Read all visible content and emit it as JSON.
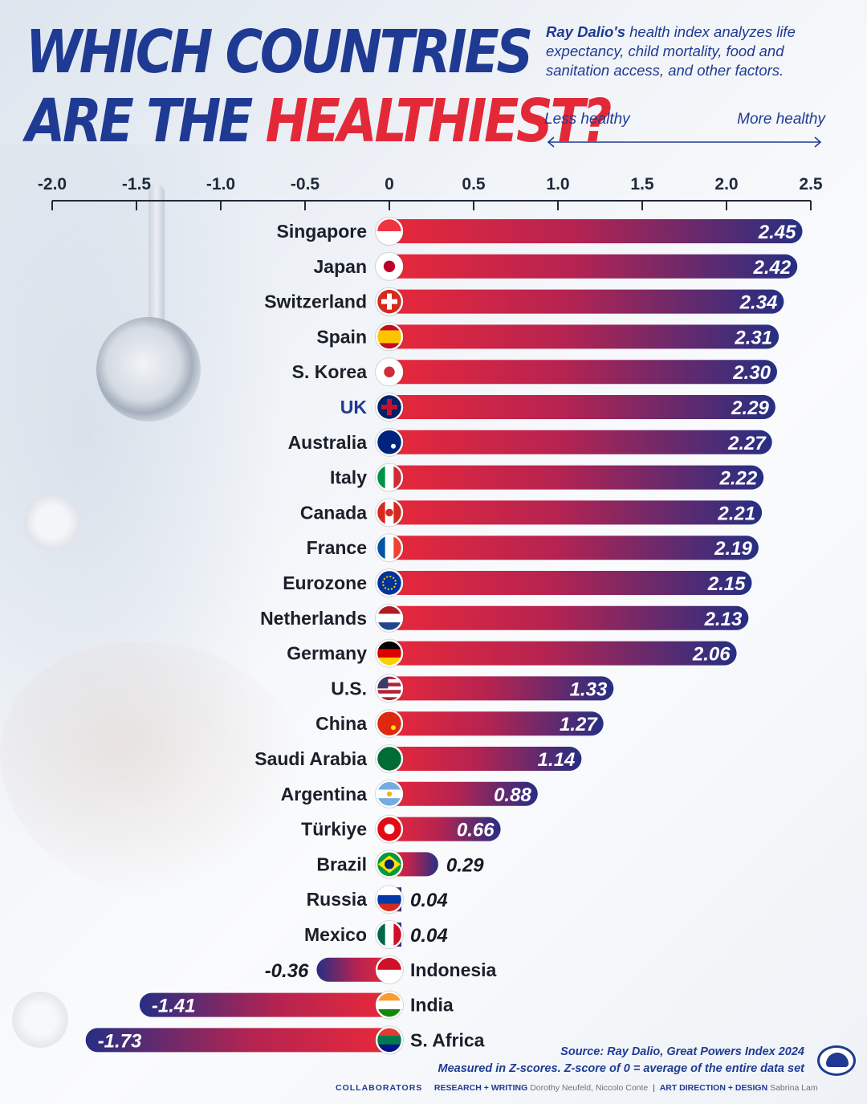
{
  "header": {
    "title_line1": "WHICH COUNTRIES",
    "title_line2_prefix": "ARE THE ",
    "title_line2_accent": "HEALTHIEST?",
    "subtitle_bold": "Ray Dalio's",
    "subtitle_rest": " health index analyzes life expectancy, child mortality, food and sanitation access, and other factors.",
    "scale_less": "Less healthy",
    "scale_more": "More healthy"
  },
  "colors": {
    "title_blue": "#1f3a93",
    "title_red": "#e32938",
    "bar_red": "#e8283a",
    "bar_navy": "#262f83",
    "axis": "#1f2a3a"
  },
  "chart_data": {
    "type": "bar",
    "orientation": "horizontal",
    "title": "WHICH COUNTRIES ARE THE HEALTHIEST?",
    "xlabel": "",
    "ylabel": "",
    "xlim": [
      -2.0,
      2.5
    ],
    "xticks": [
      -2.0,
      -1.5,
      -1.0,
      -0.5,
      0,
      0.5,
      1.0,
      1.5,
      2.0,
      2.5
    ],
    "xtick_labels": [
      "-2.0",
      "-1.5",
      "-1.0",
      "-0.5",
      "0",
      "0.5",
      "1.0",
      "1.5",
      "2.0",
      "2.5"
    ],
    "grid": false,
    "legend": "none",
    "categories": [
      "Singapore",
      "Japan",
      "Switzerland",
      "Spain",
      "S. Korea",
      "UK",
      "Australia",
      "Italy",
      "Canada",
      "France",
      "Eurozone",
      "Netherlands",
      "Germany",
      "U.S.",
      "China",
      "Saudi Arabia",
      "Argentina",
      "Türkiye",
      "Brazil",
      "Russia",
      "Mexico",
      "Indonesia",
      "India",
      "S. Africa"
    ],
    "values": [
      2.45,
      2.42,
      2.34,
      2.31,
      2.3,
      2.29,
      2.27,
      2.22,
      2.21,
      2.19,
      2.15,
      2.13,
      2.06,
      1.33,
      1.27,
      1.14,
      0.88,
      0.66,
      0.29,
      0.04,
      0.04,
      -0.36,
      -1.41,
      -1.73
    ],
    "value_labels": [
      "2.45",
      "2.42",
      "2.34",
      "2.31",
      "2.30",
      "2.29",
      "2.27",
      "2.22",
      "2.21",
      "2.19",
      "2.15",
      "2.13",
      "2.06",
      "1.33",
      "1.27",
      "1.14",
      "0.88",
      "0.66",
      "0.29",
      "0.04",
      "0.04",
      "-0.36",
      "-1.41",
      "-1.73"
    ],
    "highlighted": [
      "UK"
    ],
    "flag_icons": [
      "singapore-flag-icon",
      "japan-flag-icon",
      "switzerland-flag-icon",
      "spain-flag-icon",
      "south-korea-flag-icon",
      "uk-flag-icon",
      "australia-flag-icon",
      "italy-flag-icon",
      "canada-flag-icon",
      "france-flag-icon",
      "eurozone-flag-icon",
      "netherlands-flag-icon",
      "germany-flag-icon",
      "us-flag-icon",
      "china-flag-icon",
      "saudi-arabia-flag-icon",
      "argentina-flag-icon",
      "turkiye-flag-icon",
      "brazil-flag-icon",
      "russia-flag-icon",
      "mexico-flag-icon",
      "indonesia-flag-icon",
      "india-flag-icon",
      "south-africa-flag-icon"
    ]
  },
  "footer": {
    "source": "Source: Ray Dalio, Great Powers Index 2024",
    "note": "Measured in Z-scores. Z-score of 0 = average of the entire data set",
    "collaborators": "COLLABORATORS",
    "research_key": "RESEARCH + WRITING",
    "research_names": "Dorothy Neufeld, Niccolo Conte",
    "separator": "|",
    "design_key": "ART DIRECTION + DESIGN",
    "design_names": "Sabrina Lam"
  }
}
